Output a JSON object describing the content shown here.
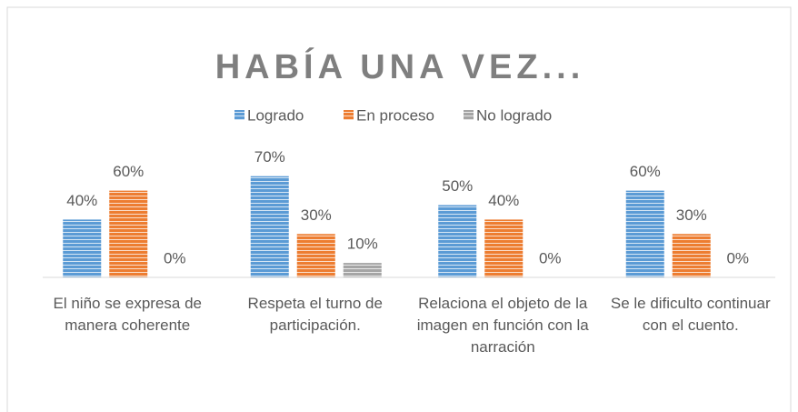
{
  "chart_data": {
    "type": "bar",
    "title": "HABÍA UNA VEZ...",
    "categories": [
      "El niño se expresa de manera coherente",
      "Respeta el turno de participación.",
      "Relaciona el objeto de la imagen en función con la narración",
      "Se le dificulto continuar con el cuento."
    ],
    "series": [
      {
        "name": "Logrado",
        "color": "#5b9bd5",
        "values": [
          40,
          70,
          50,
          60
        ],
        "value_labels": [
          "40%",
          "70%",
          "50%",
          "60%"
        ]
      },
      {
        "name": "En proceso",
        "color": "#ed7d31",
        "values": [
          60,
          30,
          40,
          30
        ],
        "value_labels": [
          "60%",
          "30%",
          "40%",
          "30%"
        ]
      },
      {
        "name": "No logrado",
        "color": "#a5a5a5",
        "values": [
          0,
          10,
          0,
          0
        ],
        "value_labels": [
          "0%",
          "10%",
          "0%",
          "0%"
        ]
      }
    ],
    "ylim": [
      0,
      100
    ]
  }
}
